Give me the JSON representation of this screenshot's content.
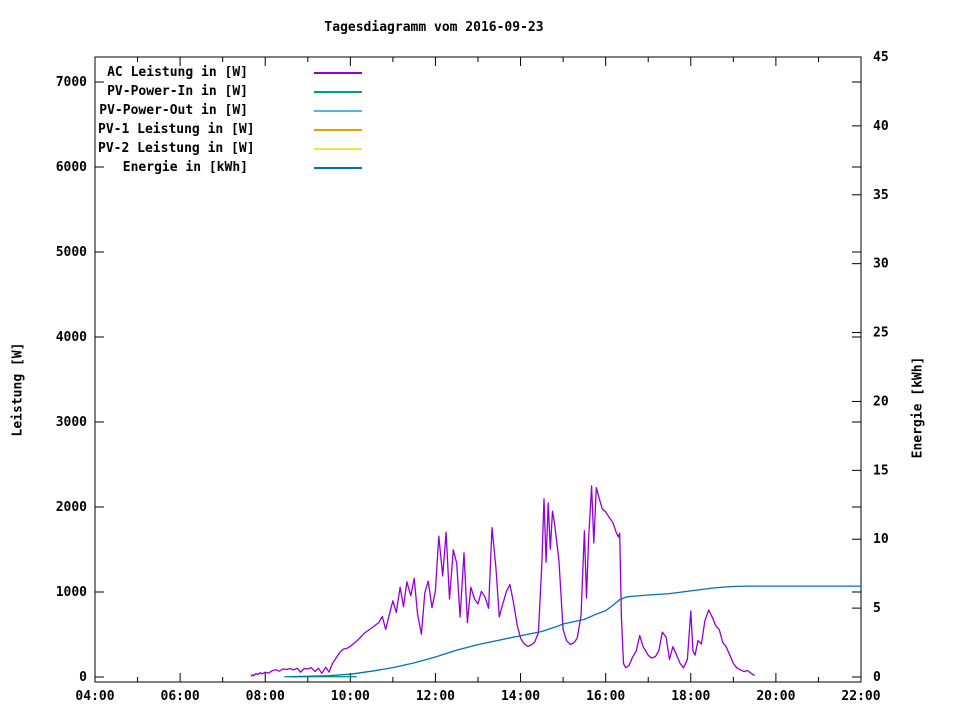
{
  "title": "Tagesdiagramm vom 2016-09-23",
  "colors": {
    "background": "#ffffff",
    "axis": "#000000",
    "ac_power": "#9400d3",
    "pv_power_in": "#009e73",
    "pv_power_out": "#56b4e9",
    "pv1_power": "#e69f00",
    "pv2_power": "#f0e442",
    "energy": "#0072b2"
  },
  "chart_data": {
    "type": "line",
    "title": "Tagesdiagramm vom 2016-09-23",
    "grid": false,
    "legend_position": "top-left-inside",
    "x_axis": {
      "unit": "time",
      "range_hours": [
        4,
        22
      ],
      "major_ticks": [
        {
          "h": 4,
          "label": "04:00"
        },
        {
          "h": 6,
          "label": "06:00"
        },
        {
          "h": 8,
          "label": "08:00"
        },
        {
          "h": 10,
          "label": "10:00"
        },
        {
          "h": 12,
          "label": "12:00"
        },
        {
          "h": 14,
          "label": "14:00"
        },
        {
          "h": 16,
          "label": "16:00"
        },
        {
          "h": 18,
          "label": "18:00"
        },
        {
          "h": 20,
          "label": "20:00"
        },
        {
          "h": 22,
          "label": "22:00"
        }
      ],
      "minor_tick_hours": [
        5,
        7,
        9,
        11,
        13,
        15,
        17,
        19,
        21
      ]
    },
    "y_axis_left": {
      "label": "Leistung [W]",
      "range": [
        0,
        7300
      ],
      "ticks": [
        {
          "v": 0,
          "label": "0"
        },
        {
          "v": 1000,
          "label": "1000"
        },
        {
          "v": 2000,
          "label": "2000"
        },
        {
          "v": 3000,
          "label": "3000"
        },
        {
          "v": 4000,
          "label": "4000"
        },
        {
          "v": 5000,
          "label": "5000"
        },
        {
          "v": 6000,
          "label": "6000"
        },
        {
          "v": 7000,
          "label": "7000"
        }
      ]
    },
    "y_axis_right": {
      "label": "Energie [kWh]",
      "range": [
        0,
        45
      ],
      "ticks": [
        {
          "v": 0,
          "label": "0"
        },
        {
          "v": 5,
          "label": "5"
        },
        {
          "v": 10,
          "label": "10"
        },
        {
          "v": 15,
          "label": "15"
        },
        {
          "v": 20,
          "label": "20"
        },
        {
          "v": 25,
          "label": "25"
        },
        {
          "v": 30,
          "label": "30"
        },
        {
          "v": 35,
          "label": "35"
        },
        {
          "v": 40,
          "label": "40"
        },
        {
          "v": 45,
          "label": "45"
        }
      ]
    },
    "series": [
      {
        "name": "AC Leistung in [W]",
        "color": "#9400d3",
        "axis": "left",
        "points": [
          [
            7.67,
            8
          ],
          [
            7.7,
            28
          ],
          [
            7.73,
            14
          ],
          [
            7.78,
            40
          ],
          [
            7.83,
            30
          ],
          [
            7.88,
            52
          ],
          [
            7.92,
            36
          ],
          [
            8.0,
            56
          ],
          [
            8.08,
            46
          ],
          [
            8.17,
            76
          ],
          [
            8.25,
            86
          ],
          [
            8.33,
            68
          ],
          [
            8.42,
            95
          ],
          [
            8.5,
            88
          ],
          [
            8.58,
            100
          ],
          [
            8.67,
            84
          ],
          [
            8.75,
            104
          ],
          [
            8.83,
            58
          ],
          [
            8.92,
            100
          ],
          [
            9.0,
            94
          ],
          [
            9.08,
            110
          ],
          [
            9.17,
            64
          ],
          [
            9.25,
            104
          ],
          [
            9.33,
            44
          ],
          [
            9.42,
            114
          ],
          [
            9.5,
            58
          ],
          [
            9.58,
            160
          ],
          [
            9.67,
            228
          ],
          [
            9.75,
            288
          ],
          [
            9.83,
            326
          ],
          [
            9.92,
            338
          ],
          [
            10.0,
            360
          ],
          [
            10.17,
            432
          ],
          [
            10.33,
            516
          ],
          [
            10.5,
            576
          ],
          [
            10.67,
            640
          ],
          [
            10.75,
            712
          ],
          [
            10.83,
            560
          ],
          [
            10.92,
            744
          ],
          [
            11.0,
            896
          ],
          [
            11.08,
            760
          ],
          [
            11.17,
            1056
          ],
          [
            11.25,
            828
          ],
          [
            11.33,
            1120
          ],
          [
            11.42,
            956
          ],
          [
            11.5,
            1160
          ],
          [
            11.58,
            736
          ],
          [
            11.67,
            504
          ],
          [
            11.75,
            988
          ],
          [
            11.83,
            1128
          ],
          [
            11.92,
            816
          ],
          [
            12.0,
            1012
          ],
          [
            12.08,
            1656
          ],
          [
            12.17,
            1188
          ],
          [
            12.25,
            1704
          ],
          [
            12.33,
            916
          ],
          [
            12.42,
            1496
          ],
          [
            12.5,
            1336
          ],
          [
            12.58,
            704
          ],
          [
            12.67,
            1460
          ],
          [
            12.75,
            640
          ],
          [
            12.83,
            1056
          ],
          [
            12.92,
            916
          ],
          [
            13.0,
            860
          ],
          [
            13.08,
            1008
          ],
          [
            13.17,
            936
          ],
          [
            13.25,
            808
          ],
          [
            13.33,
            1756
          ],
          [
            13.42,
            1288
          ],
          [
            13.5,
            708
          ],
          [
            13.58,
            856
          ],
          [
            13.67,
            1008
          ],
          [
            13.75,
            1088
          ],
          [
            13.83,
            888
          ],
          [
            13.92,
            608
          ],
          [
            14.0,
            456
          ],
          [
            14.08,
            392
          ],
          [
            14.17,
            360
          ],
          [
            14.25,
            376
          ],
          [
            14.33,
            408
          ],
          [
            14.42,
            520
          ],
          [
            14.5,
            1320
          ],
          [
            14.55,
            2096
          ],
          [
            14.6,
            1352
          ],
          [
            14.65,
            2048
          ],
          [
            14.7,
            1504
          ],
          [
            14.75,
            1952
          ],
          [
            14.8,
            1800
          ],
          [
            14.9,
            1376
          ],
          [
            15.0,
            560
          ],
          [
            15.08,
            428
          ],
          [
            15.17,
            384
          ],
          [
            15.25,
            400
          ],
          [
            15.33,
            456
          ],
          [
            15.42,
            720
          ],
          [
            15.5,
            1720
          ],
          [
            15.55,
            928
          ],
          [
            15.6,
            1624
          ],
          [
            15.67,
            2248
          ],
          [
            15.72,
            1576
          ],
          [
            15.78,
            2228
          ],
          [
            15.85,
            2096
          ],
          [
            15.92,
            1976
          ],
          [
            16.0,
            1944
          ],
          [
            16.08,
            1880
          ],
          [
            16.17,
            1816
          ],
          [
            16.25,
            1696
          ],
          [
            16.3,
            1648
          ],
          [
            16.33,
            1692
          ],
          [
            16.37,
            704
          ],
          [
            16.42,
            160
          ],
          [
            16.47,
            108
          ],
          [
            16.55,
            136
          ],
          [
            16.63,
            232
          ],
          [
            16.72,
            308
          ],
          [
            16.8,
            488
          ],
          [
            16.88,
            356
          ],
          [
            17.0,
            256
          ],
          [
            17.08,
            224
          ],
          [
            17.17,
            240
          ],
          [
            17.25,
            312
          ],
          [
            17.33,
            528
          ],
          [
            17.42,
            468
          ],
          [
            17.5,
            208
          ],
          [
            17.58,
            356
          ],
          [
            17.67,
            256
          ],
          [
            17.75,
            160
          ],
          [
            17.83,
            108
          ],
          [
            17.92,
            208
          ],
          [
            18.0,
            776
          ],
          [
            18.05,
            308
          ],
          [
            18.1,
            256
          ],
          [
            18.17,
            428
          ],
          [
            18.25,
            388
          ],
          [
            18.33,
            656
          ],
          [
            18.42,
            788
          ],
          [
            18.5,
            708
          ],
          [
            18.58,
            608
          ],
          [
            18.67,
            556
          ],
          [
            18.75,
            408
          ],
          [
            18.83,
            356
          ],
          [
            18.92,
            256
          ],
          [
            19.0,
            160
          ],
          [
            19.08,
            108
          ],
          [
            19.17,
            84
          ],
          [
            19.25,
            64
          ],
          [
            19.33,
            76
          ],
          [
            19.42,
            44
          ],
          [
            19.5,
            16
          ]
        ]
      },
      {
        "name": "PV-Power-In in [W]",
        "color": "#009e73",
        "axis": "left",
        "points": [
          [
            8.45,
            4
          ],
          [
            10.15,
            4
          ]
        ]
      },
      {
        "name": "PV-Power-Out in [W]",
        "color": "#56b4e9",
        "axis": "left",
        "points": []
      },
      {
        "name": "PV-1 Leistung in [W]",
        "color": "#e69f00",
        "axis": "left",
        "points": []
      },
      {
        "name": "PV-2 Leistung in [W]",
        "color": "#f0e442",
        "axis": "left",
        "points": []
      },
      {
        "name": "Energie in [kWh]",
        "color": "#0072b2",
        "axis": "right",
        "points": [
          [
            8.6,
            0.02
          ],
          [
            9.0,
            0.05
          ],
          [
            9.5,
            0.1
          ],
          [
            10.0,
            0.2
          ],
          [
            10.5,
            0.42
          ],
          [
            11.0,
            0.68
          ],
          [
            11.5,
            1.02
          ],
          [
            12.0,
            1.45
          ],
          [
            12.5,
            1.95
          ],
          [
            13.0,
            2.35
          ],
          [
            13.5,
            2.68
          ],
          [
            14.0,
            3.0
          ],
          [
            14.5,
            3.3
          ],
          [
            14.9,
            3.72
          ],
          [
            15.0,
            3.85
          ],
          [
            15.5,
            4.18
          ],
          [
            15.75,
            4.52
          ],
          [
            16.0,
            4.82
          ],
          [
            16.17,
            5.2
          ],
          [
            16.33,
            5.62
          ],
          [
            16.5,
            5.82
          ],
          [
            17.0,
            5.95
          ],
          [
            17.5,
            6.05
          ],
          [
            18.0,
            6.25
          ],
          [
            18.5,
            6.45
          ],
          [
            18.8,
            6.53
          ],
          [
            19.0,
            6.57
          ],
          [
            19.3,
            6.6
          ],
          [
            22.0,
            6.6
          ]
        ]
      }
    ]
  }
}
